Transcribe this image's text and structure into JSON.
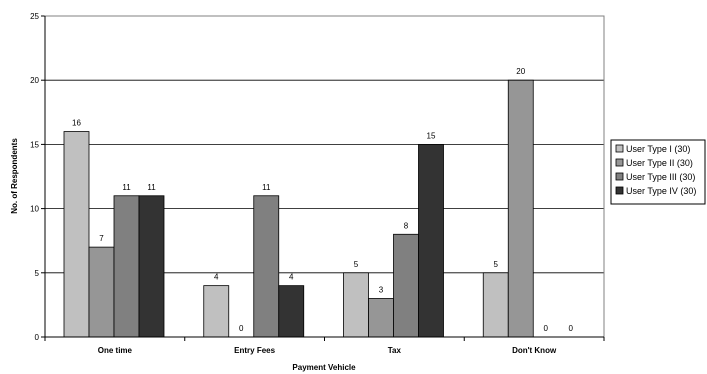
{
  "chart_data": {
    "type": "bar",
    "title": "",
    "xlabel": "Payment Vehicle",
    "ylabel": "No. of Respondents",
    "ylim": [
      0,
      25
    ],
    "yticks": [
      0,
      5,
      10,
      15,
      20,
      25
    ],
    "grid": true,
    "legend_position": "right",
    "categories": [
      "One time",
      "Entry Fees",
      "Tax",
      "Don't Know"
    ],
    "series": [
      {
        "name": "User Type I (30)",
        "color": "#c0c0c0",
        "values": [
          16,
          4,
          5,
          5
        ]
      },
      {
        "name": "User Type II (30)",
        "color": "#969696",
        "values": [
          7,
          0,
          3,
          20
        ]
      },
      {
        "name": "User Type III (30)",
        "color": "#808080",
        "values": [
          11,
          11,
          8,
          0
        ]
      },
      {
        "name": "User Type IV (30)",
        "color": "#333333",
        "values": [
          11,
          4,
          15,
          0
        ]
      }
    ]
  }
}
